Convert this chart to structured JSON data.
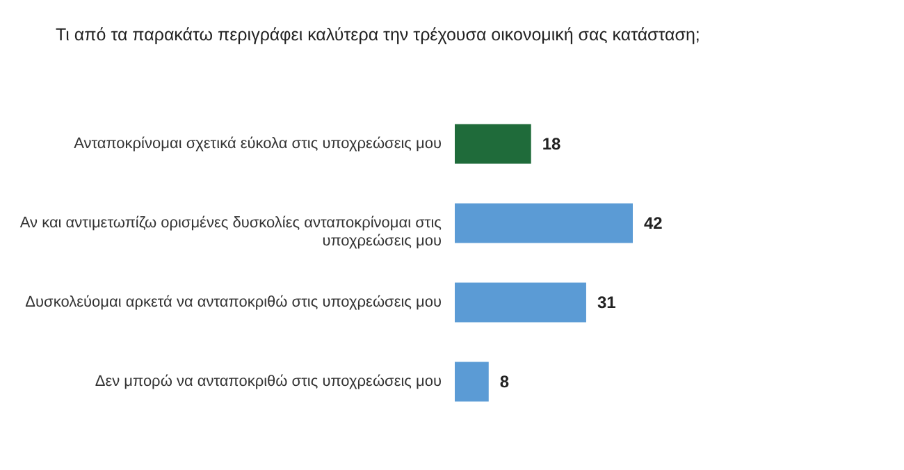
{
  "chart_data": {
    "type": "bar",
    "orientation": "horizontal",
    "title": "Τι από τα παρακάτω περιγράφει καλύτερα την τρέχουσα οικονομική σας κατάσταση;",
    "categories": [
      "Ανταποκρίνομαι σχετικά εύκολα στις υποχρεώσεις μου",
      "Αν και αντιμετωπίζω ορισμένες δυσκολίες ανταποκρίνομαι στις υποχρεώσεις μου",
      "Δυσκολεύομαι αρκετά να ανταποκριθώ στις υποχρεώσεις μου",
      "Δεν μπορώ να ανταποκριθώ στις υποχρεώσεις μου"
    ],
    "values": [
      18,
      42,
      31,
      8
    ],
    "colors": [
      "#1f6b3a",
      "#5b9bd5",
      "#5b9bd5",
      "#5b9bd5"
    ],
    "data_labels": true
  }
}
